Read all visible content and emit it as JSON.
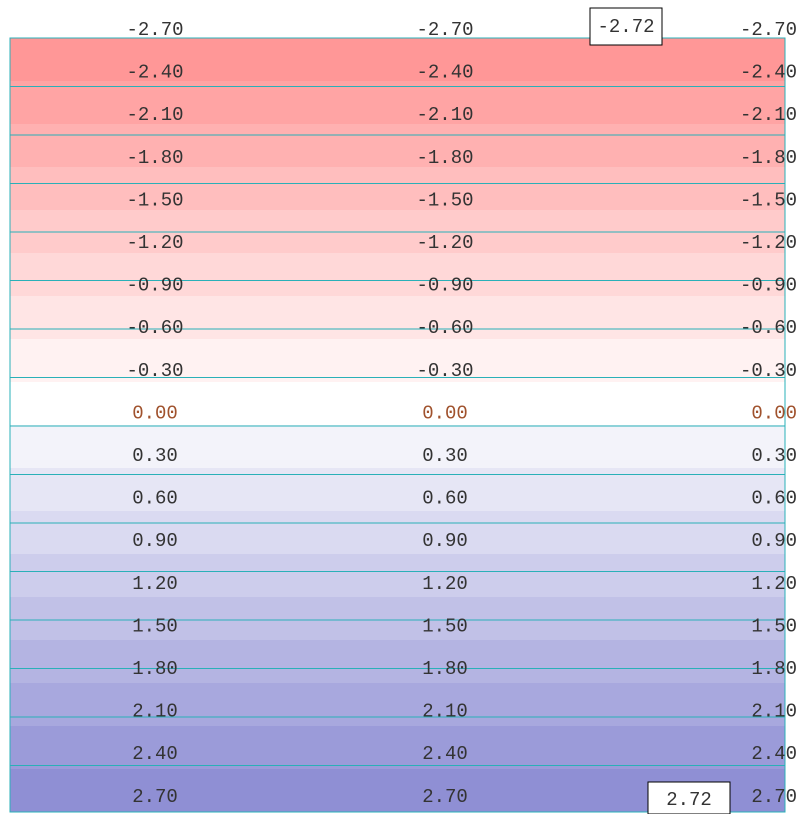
{
  "rows": [
    [
      "-2.70",
      "-2.70",
      "-2.70"
    ],
    [
      "-2.40",
      "-2.40",
      "-2.40"
    ],
    [
      "-2.10",
      "-2.10",
      "-2.10"
    ],
    [
      "-1.80",
      "-1.80",
      "-1.80"
    ],
    [
      "-1.50",
      "-1.50",
      "-1.50"
    ],
    [
      "-1.20",
      "-1.20",
      "-1.20"
    ],
    [
      "-0.90",
      "-0.90",
      "-0.90"
    ],
    [
      "-0.60",
      "-0.60",
      "-0.60"
    ],
    [
      "-0.30",
      "-0.30",
      "-0.30"
    ],
    [
      "0.00",
      "0.00",
      "0.00"
    ],
    [
      "0.30",
      "0.30",
      "0.30"
    ],
    [
      "0.60",
      "0.60",
      "0.60"
    ],
    [
      "0.90",
      "0.90",
      "0.90"
    ],
    [
      "1.20",
      "1.20",
      "1.20"
    ],
    [
      "1.50",
      "1.50",
      "1.50"
    ],
    [
      "1.80",
      "1.80",
      "1.80"
    ],
    [
      "2.10",
      "2.10",
      "2.10"
    ],
    [
      "2.40",
      "2.40",
      "2.40"
    ],
    [
      "2.70",
      "2.70",
      "2.70"
    ]
  ],
  "min_label": "-2.72",
  "max_label": "2.72"
}
